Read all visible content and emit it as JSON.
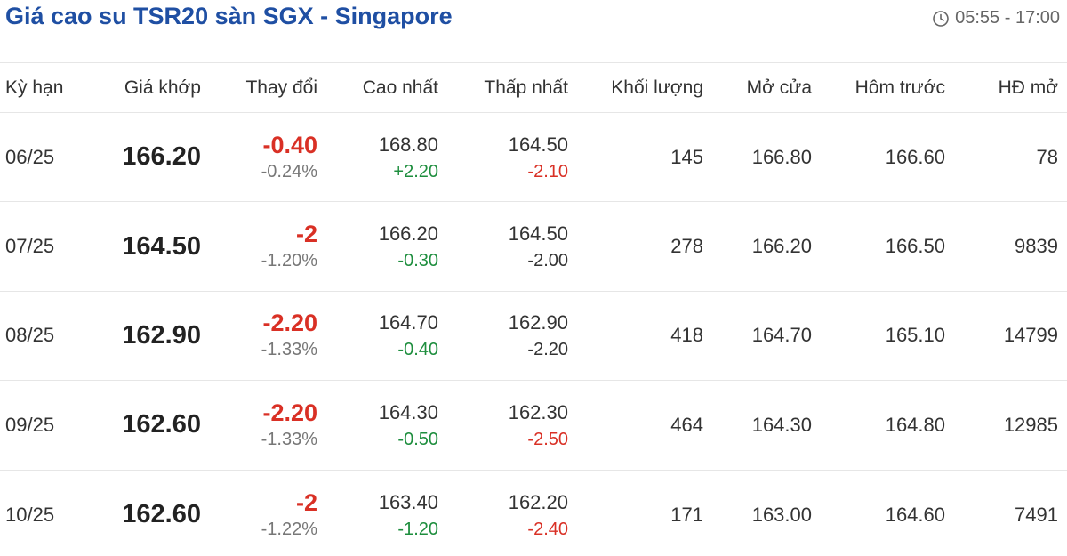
{
  "header": {
    "title": "Giá cao su TSR20 sàn SGX - Singapore",
    "time": "05:55 - 17:00"
  },
  "columns": [
    "Kỳ hạn",
    "Giá khớp",
    "Thay đổi",
    "Cao nhất",
    "Thấp nhất",
    "Khối lượng",
    "Mở cửa",
    "Hôm trước",
    "HĐ mở"
  ],
  "rows": [
    {
      "term": "06/25",
      "price": "166.20",
      "change": "-0.40",
      "change_pct": "-0.24%",
      "high": "168.80",
      "high_diff": "+2.20",
      "high_dir": "pos",
      "low": "164.50",
      "low_diff": "-2.10",
      "low_dir": "neg",
      "volume": "145",
      "open": "166.80",
      "prev": "166.60",
      "oi": "78"
    },
    {
      "term": "07/25",
      "price": "164.50",
      "change": "-2",
      "change_pct": "-1.20%",
      "high": "166.20",
      "high_diff": "-0.30",
      "high_dir": "pos",
      "low": "164.50",
      "low_diff": "-2.00",
      "low_dir": "neutral",
      "volume": "278",
      "open": "166.20",
      "prev": "166.50",
      "oi": "9839"
    },
    {
      "term": "08/25",
      "price": "162.90",
      "change": "-2.20",
      "change_pct": "-1.33%",
      "high": "164.70",
      "high_diff": "-0.40",
      "high_dir": "pos",
      "low": "162.90",
      "low_diff": "-2.20",
      "low_dir": "neutral",
      "volume": "418",
      "open": "164.70",
      "prev": "165.10",
      "oi": "14799"
    },
    {
      "term": "09/25",
      "price": "162.60",
      "change": "-2.20",
      "change_pct": "-1.33%",
      "high": "164.30",
      "high_diff": "-0.50",
      "high_dir": "pos",
      "low": "162.30",
      "low_diff": "-2.50",
      "low_dir": "neg",
      "volume": "464",
      "open": "164.30",
      "prev": "164.80",
      "oi": "12985"
    },
    {
      "term": "10/25",
      "price": "162.60",
      "change": "-2",
      "change_pct": "-1.22%",
      "high": "163.40",
      "high_diff": "-1.20",
      "high_dir": "pos",
      "low": "162.20",
      "low_diff": "-2.40",
      "low_dir": "neg",
      "volume": "171",
      "open": "163.00",
      "prev": "164.60",
      "oi": "7491"
    }
  ],
  "icons": {
    "time": "clock-icon"
  },
  "colors": {
    "title": "#1f4fa3",
    "down": "#d93025",
    "up": "#1e8e3e"
  }
}
